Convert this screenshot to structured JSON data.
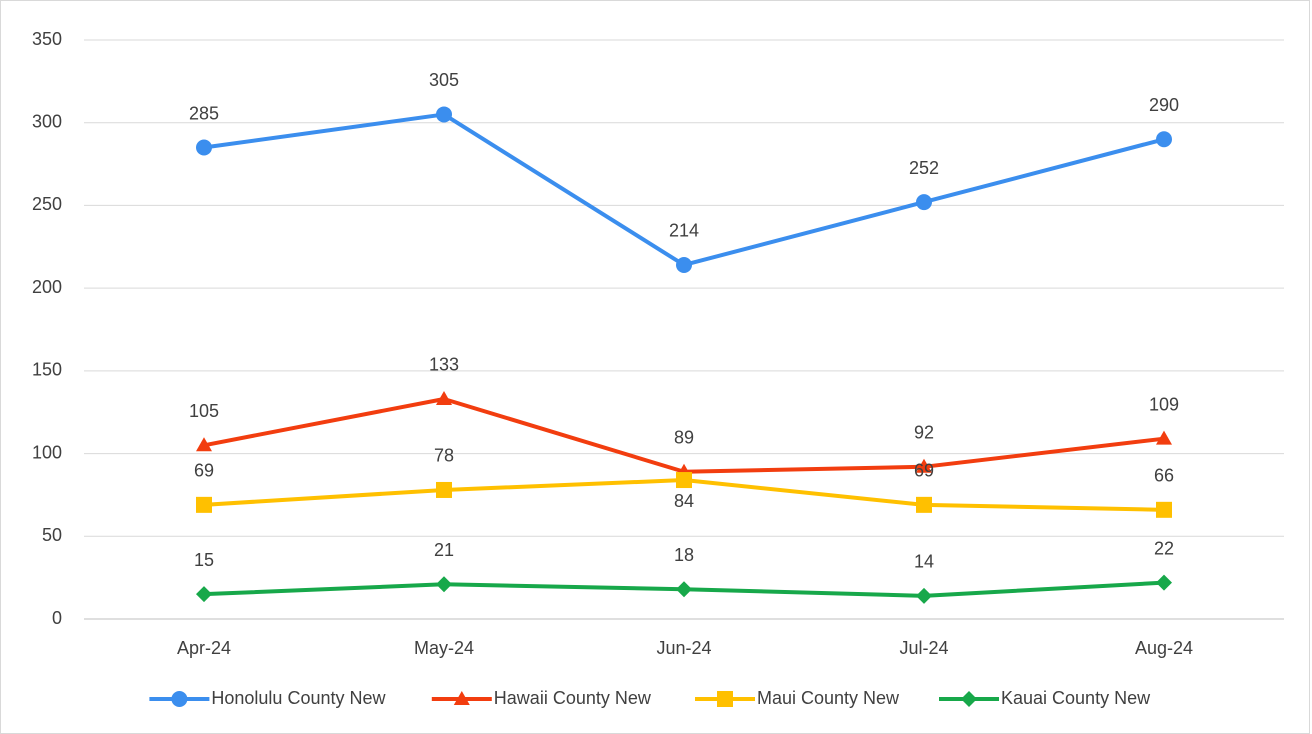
{
  "chart_data": {
    "type": "line",
    "categories": [
      "Apr-24",
      "May-24",
      "Jun-24",
      "Jul-24",
      "Aug-24"
    ],
    "series": [
      {
        "name": "Honolulu County New",
        "color": "#3b8eee",
        "marker": "circle",
        "values": [
          285,
          305,
          214,
          252,
          290
        ]
      },
      {
        "name": "Hawaii County New",
        "color": "#f23d0f",
        "marker": "triangle",
        "values": [
          105,
          133,
          89,
          92,
          109
        ]
      },
      {
        "name": "Maui County New",
        "color": "#ffc000",
        "marker": "square",
        "values": [
          69,
          78,
          84,
          69,
          66
        ]
      },
      {
        "name": "Kauai County New",
        "color": "#17a84a",
        "marker": "diamond",
        "values": [
          15,
          21,
          18,
          14,
          22
        ]
      }
    ],
    "ylim": [
      0,
      350
    ],
    "yticks": [
      0,
      50,
      100,
      150,
      200,
      250,
      300,
      350
    ],
    "grid": true,
    "legend": "bottom"
  }
}
